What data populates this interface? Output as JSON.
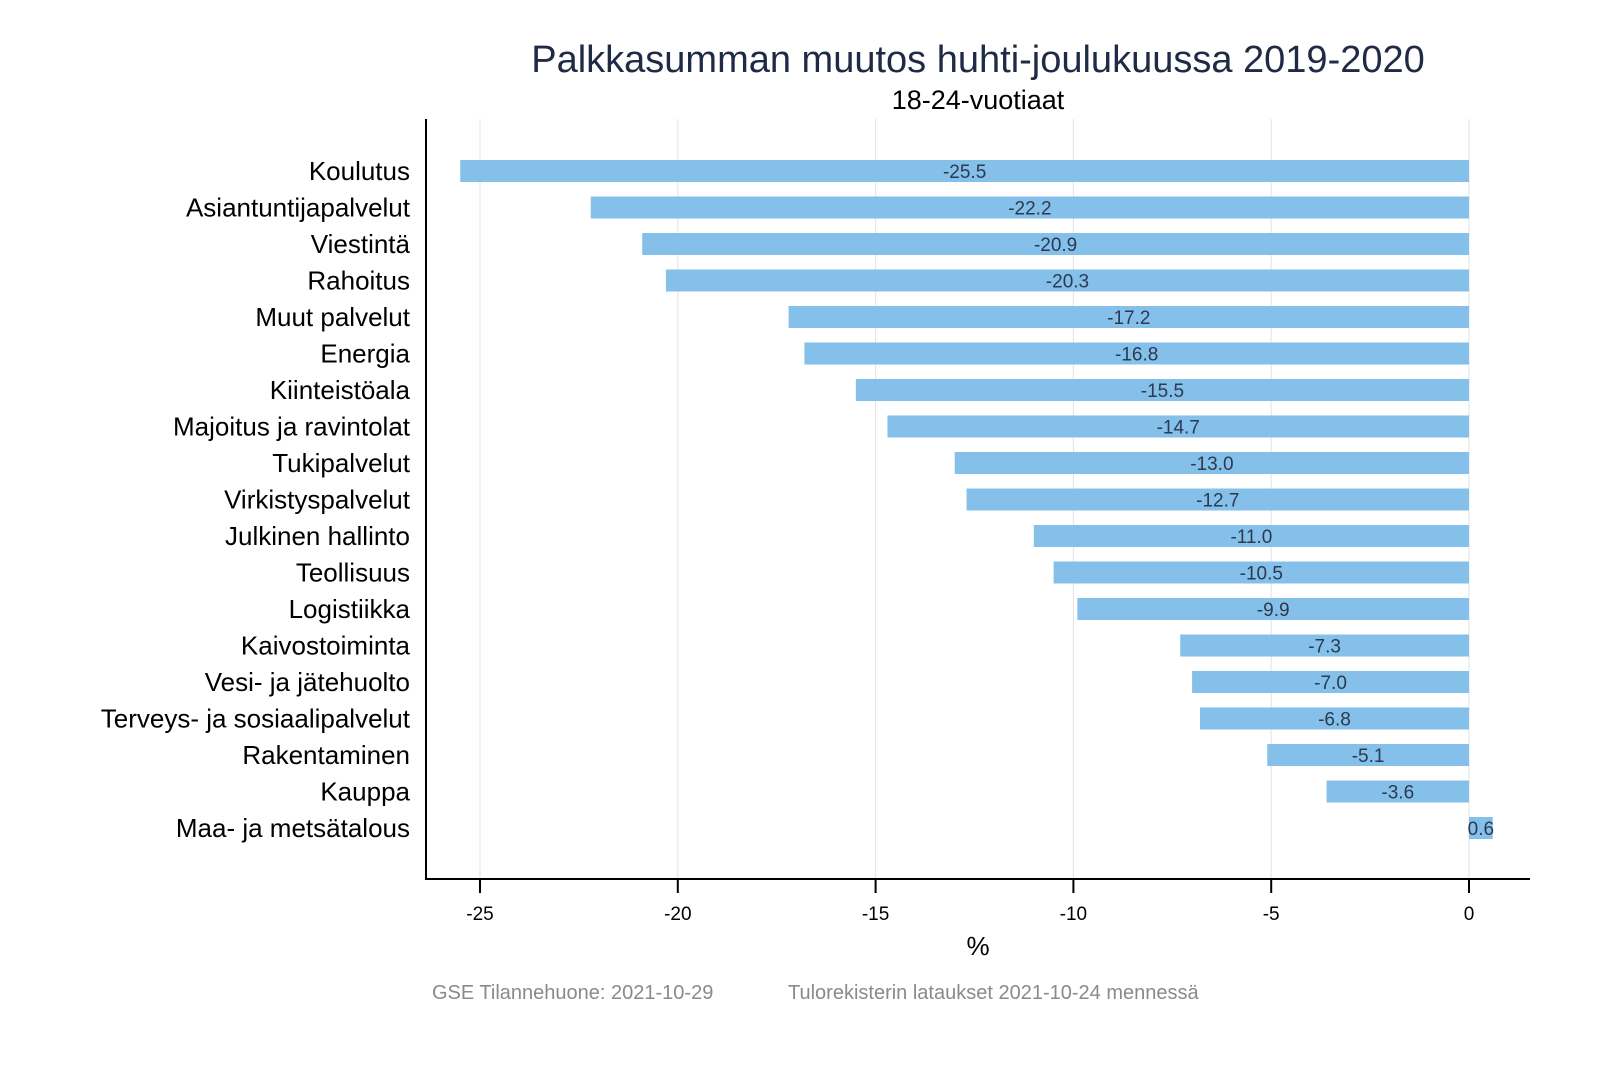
{
  "chart_data": {
    "type": "bar",
    "orientation": "horizontal",
    "title": "Palkkasumman muutos huhti-joulukuussa 2019-2020",
    "subtitle": "18-24-vuotiaat",
    "xlabel": "%",
    "ylabel": "",
    "xlim": [
      -26.4,
      1.5
    ],
    "xticks": [
      -25,
      -20,
      -15,
      -10,
      -5,
      0
    ],
    "grid": true,
    "bar_color": "#85c0ea",
    "categories": [
      "Koulutus",
      "Asiantuntijapalvelut",
      "Viestintä",
      "Rahoitus",
      "Muut palvelut",
      "Energia",
      "Kiinteistöala",
      "Majoitus ja ravintolat",
      "Tukipalvelut",
      "Virkistyspalvelut",
      "Julkinen hallinto",
      "Teollisuus",
      "Logistiikka",
      "Kaivostoiminta",
      "Vesi- ja jätehuolto",
      "Terveys- ja sosiaalipalvelut",
      "Rakentaminen",
      "Kauppa",
      "Maa- ja metsätalous"
    ],
    "values": [
      -25.5,
      -22.2,
      -20.9,
      -20.3,
      -17.2,
      -16.8,
      -15.5,
      -14.7,
      -13.0,
      -12.7,
      -11.0,
      -10.5,
      -9.9,
      -7.3,
      -7.0,
      -6.8,
      -5.1,
      -3.6,
      0.6
    ],
    "value_labels": [
      "-25.5",
      "-22.2",
      "-20.9",
      "-20.3",
      "-17.2",
      "-16.8",
      "-15.5",
      "-14.7",
      "-13.0",
      "-12.7",
      "-11.0",
      "-10.5",
      "-9.9",
      "-7.3",
      "-7.0",
      "-6.8",
      "-5.1",
      "-3.6",
      "0.6"
    ]
  },
  "footer": {
    "source": "GSE Tilannehuone: 2021-10-29",
    "note": "Tulorekisterin lataukset 2021-10-24 mennessä"
  }
}
